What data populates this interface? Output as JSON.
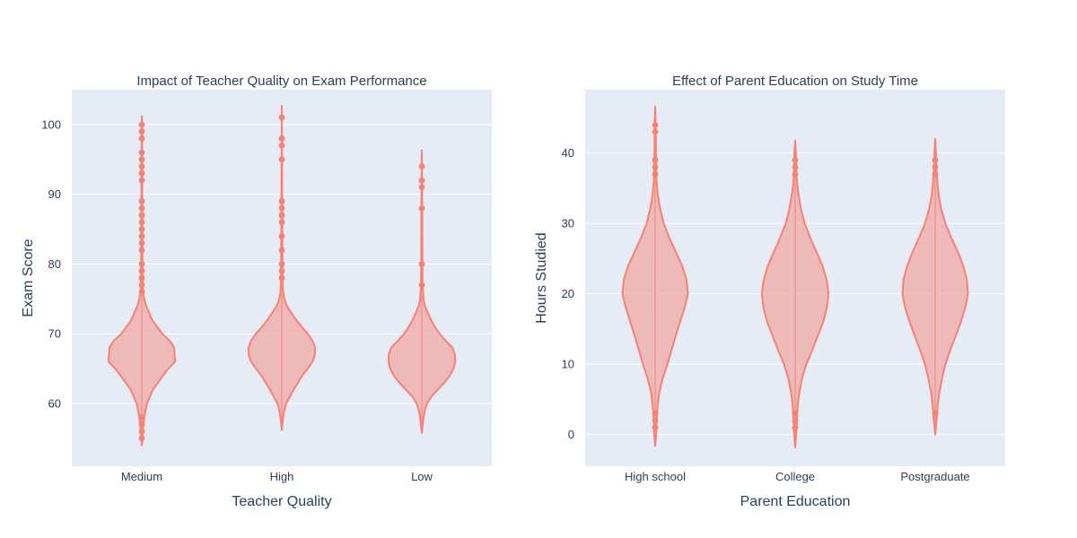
{
  "colors": {
    "plot_bg": "#e5ecf6",
    "grid": "#ffffff",
    "violin_line": "#fa8072",
    "violin_fill": "#f0a8a4",
    "text": "#2a3f5f"
  },
  "chart_data": [
    {
      "type": "violin",
      "title": "Impact of Teacher Quality on Exam Performance",
      "xlabel": "Teacher Quality",
      "ylabel": "Exam Score",
      "categories": [
        "Medium",
        "High",
        "Low"
      ],
      "ylim": [
        51,
        105
      ],
      "yticks": [
        60,
        70,
        80,
        90,
        100
      ],
      "grid": true,
      "violins": [
        {
          "category": "Medium",
          "range": [
            54,
            101.2
          ],
          "profile": [
            [
              54,
              0
            ],
            [
              56,
              0.03
            ],
            [
              58,
              0.07
            ],
            [
              60,
              0.15
            ],
            [
              62,
              0.33
            ],
            [
              64,
              0.62
            ],
            [
              65,
              0.78
            ],
            [
              66,
              0.98
            ],
            [
              67,
              0.96
            ],
            [
              68,
              0.95
            ],
            [
              69,
              0.82
            ],
            [
              70,
              0.6
            ],
            [
              71,
              0.45
            ],
            [
              72,
              0.3
            ],
            [
              73,
              0.22
            ],
            [
              74,
              0.13
            ],
            [
              75,
              0.07
            ],
            [
              76,
              0.04
            ],
            [
              78,
              0.02
            ],
            [
              85,
              0.015
            ],
            [
              101.2,
              0
            ]
          ],
          "outliers": [
            100,
            99,
            98,
            96,
            95,
            94,
            93,
            92,
            89,
            88,
            87,
            86,
            85,
            84,
            83,
            82,
            80,
            79,
            78,
            77,
            76,
            58,
            57,
            56,
            55
          ]
        },
        {
          "category": "High",
          "range": [
            56.2,
            102.7
          ],
          "profile": [
            [
              56.2,
              0
            ],
            [
              58,
              0.04
            ],
            [
              59,
              0.07
            ],
            [
              60,
              0.13
            ],
            [
              62,
              0.35
            ],
            [
              64,
              0.6
            ],
            [
              65,
              0.76
            ],
            [
              66,
              0.9
            ],
            [
              67,
              0.97
            ],
            [
              68,
              0.98
            ],
            [
              69,
              0.9
            ],
            [
              70,
              0.76
            ],
            [
              71,
              0.58
            ],
            [
              72,
              0.42
            ],
            [
              73,
              0.28
            ],
            [
              74,
              0.15
            ],
            [
              75,
              0.07
            ],
            [
              76,
              0.04
            ],
            [
              78,
              0.02
            ],
            [
              85,
              0.015
            ],
            [
              102.7,
              0
            ]
          ],
          "outliers": [
            101,
            98,
            97,
            95,
            89,
            88,
            87,
            86,
            84,
            82,
            80,
            79,
            78
          ]
        },
        {
          "category": "Low",
          "range": [
            55.8,
            96.3
          ],
          "profile": [
            [
              55.8,
              0
            ],
            [
              58,
              0.05
            ],
            [
              59,
              0.09
            ],
            [
              60,
              0.15
            ],
            [
              61,
              0.28
            ],
            [
              62,
              0.47
            ],
            [
              63,
              0.66
            ],
            [
              64,
              0.82
            ],
            [
              65,
              0.93
            ],
            [
              66,
              0.98
            ],
            [
              67,
              0.97
            ],
            [
              68,
              0.9
            ],
            [
              69,
              0.7
            ],
            [
              70,
              0.52
            ],
            [
              71,
              0.38
            ],
            [
              72,
              0.27
            ],
            [
              73,
              0.18
            ],
            [
              74,
              0.09
            ],
            [
              75,
              0.05
            ],
            [
              77,
              0.02
            ],
            [
              85,
              0.015
            ],
            [
              96.3,
              0
            ]
          ],
          "outliers": [
            94,
            92,
            91,
            88,
            80,
            77
          ]
        }
      ]
    },
    {
      "type": "violin",
      "title": "Effect of Parent Education on Study Time",
      "xlabel": "Parent Education",
      "ylabel": "Hours Studied",
      "categories": [
        "High school",
        "College",
        "Postgraduate"
      ],
      "ylim": [
        -4.5,
        49
      ],
      "yticks": [
        0,
        10,
        20,
        30,
        40
      ],
      "grid": true,
      "violins": [
        {
          "category": "High school",
          "range": [
            -1.6,
            46.6
          ],
          "profile": [
            [
              -1.6,
              0
            ],
            [
              0,
              0.03
            ],
            [
              2,
              0.04
            ],
            [
              4,
              0.07
            ],
            [
              6,
              0.12
            ],
            [
              8,
              0.22
            ],
            [
              10,
              0.36
            ],
            [
              12,
              0.48
            ],
            [
              14,
              0.6
            ],
            [
              16,
              0.73
            ],
            [
              18,
              0.86
            ],
            [
              20,
              0.96
            ],
            [
              22,
              0.92
            ],
            [
              24,
              0.79
            ],
            [
              26,
              0.6
            ],
            [
              28,
              0.41
            ],
            [
              30,
              0.25
            ],
            [
              32,
              0.15
            ],
            [
              34,
              0.08
            ],
            [
              36,
              0.04
            ],
            [
              38,
              0.03
            ],
            [
              40,
              0.02
            ],
            [
              44,
              0.015
            ],
            [
              46.6,
              0
            ]
          ],
          "outliers": [
            44,
            43,
            39,
            38,
            37,
            3,
            2,
            1
          ]
        },
        {
          "category": "College",
          "range": [
            -1.8,
            41.8
          ],
          "profile": [
            [
              -1.8,
              0
            ],
            [
              0,
              0.03
            ],
            [
              2,
              0.05
            ],
            [
              4,
              0.07
            ],
            [
              6,
              0.12
            ],
            [
              8,
              0.2
            ],
            [
              10,
              0.33
            ],
            [
              12,
              0.5
            ],
            [
              14,
              0.66
            ],
            [
              16,
              0.82
            ],
            [
              18,
              0.93
            ],
            [
              20,
              0.98
            ],
            [
              22,
              0.92
            ],
            [
              24,
              0.8
            ],
            [
              26,
              0.62
            ],
            [
              28,
              0.44
            ],
            [
              30,
              0.28
            ],
            [
              32,
              0.17
            ],
            [
              34,
              0.1
            ],
            [
              36,
              0.05
            ],
            [
              38,
              0.03
            ],
            [
              40,
              0.02
            ],
            [
              41.8,
              0
            ]
          ],
          "outliers": [
            39,
            38,
            37,
            3,
            2,
            1
          ]
        },
        {
          "category": "Postgraduate",
          "range": [
            0,
            42
          ],
          "profile": [
            [
              0,
              0
            ],
            [
              2,
              0.04
            ],
            [
              4,
              0.07
            ],
            [
              6,
              0.12
            ],
            [
              8,
              0.2
            ],
            [
              10,
              0.3
            ],
            [
              12,
              0.44
            ],
            [
              14,
              0.6
            ],
            [
              16,
              0.75
            ],
            [
              18,
              0.88
            ],
            [
              20,
              0.96
            ],
            [
              22,
              0.93
            ],
            [
              24,
              0.82
            ],
            [
              26,
              0.66
            ],
            [
              28,
              0.47
            ],
            [
              30,
              0.3
            ],
            [
              32,
              0.18
            ],
            [
              34,
              0.1
            ],
            [
              36,
              0.06
            ],
            [
              38,
              0.03
            ],
            [
              40,
              0.02
            ],
            [
              42,
              0
            ]
          ],
          "outliers": [
            39,
            38,
            37,
            3
          ]
        }
      ]
    }
  ]
}
